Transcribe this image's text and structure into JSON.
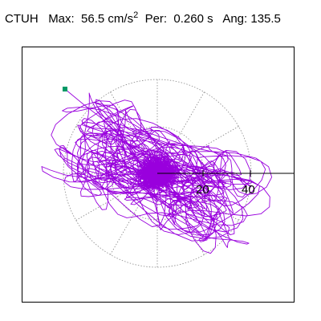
{
  "header": {
    "station": "CTUH",
    "max_label": "Max:",
    "max_value": "56.5",
    "max_unit": "cm/s",
    "max_unit_exp": "2",
    "period_label": "Per:",
    "period_value": "0.260 s",
    "angle_label": "Ang:",
    "angle_value": "135.5"
  },
  "plot": {
    "ring_labels": [
      "20",
      "40"
    ],
    "trace_color": "#9900dd",
    "marker_color": "#009966",
    "frame_color": "#000000",
    "grid_color": "#888888"
  }
}
